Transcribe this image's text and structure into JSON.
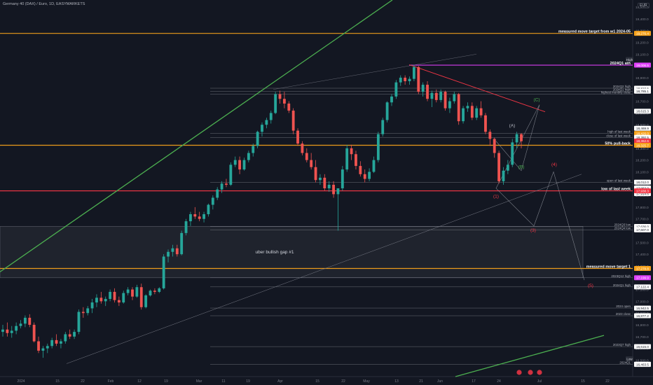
{
  "header": {
    "symbol": "Germany 40 (DAX) / Euro, 1D, EASYMARKETS",
    "currency": "EUR"
  },
  "chart_data": {
    "type": "candlestick",
    "title": "Germany 40 (DAX) / Euro, 1D, EASYMARKETS",
    "ylim": [
      16360,
      19560
    ],
    "y_ticks": [
      16500,
      16600,
      16700,
      16800,
      16900,
      17000,
      17100,
      17200,
      17300,
      17400,
      17500,
      17600,
      17700,
      17800,
      17900,
      18000,
      18100,
      18200,
      18300,
      18400,
      18500,
      18600,
      18700,
      18800,
      18900,
      19000,
      19100,
      19200,
      19300,
      19400,
      19500
    ],
    "x_ticks": [
      "2024",
      "15",
      "22",
      "Feb",
      "12",
      "19",
      "Mar",
      "11",
      "19",
      "Apr",
      "15",
      "22",
      "May",
      "13",
      "21",
      "Jun",
      "17",
      "24",
      "Jul",
      "15",
      "22"
    ],
    "price_labels": [
      {
        "value": 19276.4,
        "text": "19,276.4",
        "color": "#f7a21b"
      },
      {
        "value": 19006.5,
        "text": "19,006.5",
        "color": "#e040fb"
      },
      {
        "value": 18810.5,
        "text": "18,810.5",
        "color": "#ffffff"
      },
      {
        "value": 18785.1,
        "text": "18,785.1",
        "color": "#ffffff"
      },
      {
        "value": 18615.3,
        "text": "18,615.3",
        "color": "#ffffff"
      },
      {
        "value": 18469.9,
        "text": "18,469.9",
        "color": "#ffffff"
      },
      {
        "value": 18426.0,
        "text": "18,426.0",
        "color": "#f7a21b"
      },
      {
        "value": 18392.5,
        "text": "18,392.5",
        "color": "#ffffff"
      },
      {
        "value": 18362.6,
        "text": "18,362.6",
        "color": "#f23645"
      },
      {
        "value": 18325.7,
        "text": "18,325.7",
        "color": "#f7a21b"
      },
      {
        "value": 18012.0,
        "text": "18,012.0",
        "color": "#ffffff"
      },
      {
        "value": 17963.0,
        "text": "17,963.0",
        "color": "#ffffff"
      },
      {
        "value": 17914.6,
        "text": "17,914.6",
        "color": "#ffffff"
      },
      {
        "value": 17938.3,
        "text": "17,938.3",
        "color": "#f23645"
      },
      {
        "value": 17636.0,
        "text": "17,636.0",
        "color": "#ffffff"
      },
      {
        "value": 17607.0,
        "text": "17,607.0",
        "color": "#ffffff"
      },
      {
        "value": 17278.8,
        "text": "17,278.8",
        "color": "#f7a21b"
      },
      {
        "value": 17199.9,
        "text": "17,199.9",
        "color": "#e040fb"
      },
      {
        "value": 17122.4,
        "text": "17,122.4",
        "color": "#ffffff"
      },
      {
        "value": 16942.5,
        "text": "16,942.5",
        "color": "#ffffff"
      },
      {
        "value": 16877.2,
        "text": "16,877.2",
        "color": "#ffffff"
      },
      {
        "value": 16615.0,
        "text": "16,615.0",
        "color": "#ffffff"
      },
      {
        "value": 16465.5,
        "text": "16,465.5",
        "color": "#ffffff"
      },
      {
        "value": 16463.5,
        "text": "16,463.5",
        "color": "#ffffff"
      }
    ],
    "hline_annotations": [
      {
        "value": 19276.4,
        "text": "measured move target from w1 2024-05",
        "color": "#f7a21b"
      },
      {
        "value": 19006.5,
        "text": "2024Q1 ath",
        "color": "#e040fb"
      },
      {
        "value": 18810.5,
        "text": "2024Q2 high",
        "color": "#b2b5be"
      },
      {
        "value": 18785.1,
        "text": "2024Q1 high",
        "color": "#b2b5be"
      },
      {
        "value": 18760.0,
        "text": "highest monthly close",
        "color": "#b2b5be"
      },
      {
        "value": 18426.0,
        "text": "high of last week",
        "color": "#b2b5be"
      },
      {
        "value": 18392.5,
        "text": "close of last week",
        "color": "#b2b5be"
      },
      {
        "value": 18325.7,
        "text": "50% pull-back",
        "color": "#f7a21b"
      },
      {
        "value": 18012.0,
        "text": "open of last week",
        "color": "#b2b5be"
      },
      {
        "value": 17938.3,
        "text": "low of last week",
        "color": "#f23645"
      },
      {
        "value": 17636.0,
        "text": "2024Q3 low",
        "color": "#b2b5be"
      },
      {
        "value": 17607.0,
        "text": "2024Q4 low",
        "color": "#b2b5be"
      },
      {
        "value": 17278.8,
        "text": "measured move target 1",
        "color": "#f7a21b"
      },
      {
        "value": 17199.9,
        "text": "2023Q12 high",
        "color": "#b2b5be"
      },
      {
        "value": 17122.4,
        "text": "2024Q1 high",
        "color": "#b2b5be"
      },
      {
        "value": 16942.5,
        "text": "2024 open",
        "color": "#b2b5be"
      },
      {
        "value": 16877.2,
        "text": "2023 close",
        "color": "#b2b5be"
      },
      {
        "value": 16615.0,
        "text": "2023Q7 high",
        "color": "#b2b5be"
      },
      {
        "value": 16465.5,
        "text": "2024Q1",
        "color": "#b2b5be"
      }
    ],
    "axis_badges": [
      {
        "value": 19006.5,
        "text": "High"
      },
      {
        "value": 16463.5,
        "text": "Low"
      }
    ],
    "wave_labels": [
      {
        "text": "(A)",
        "color": "#b2b5be"
      },
      {
        "text": "(B)",
        "color": "#4caf50"
      },
      {
        "text": "(C)",
        "color": "#4caf50"
      },
      {
        "text": "(1)",
        "color": "#f23645"
      },
      {
        "text": "(3)",
        "color": "#f23645"
      },
      {
        "text": "(4)",
        "color": "#f23645"
      },
      {
        "text": "(5)",
        "color": "#f23645"
      }
    ],
    "gap_zone": {
      "label": "uber bullish gap #1",
      "from": 17199.9,
      "to": 17636.0
    },
    "candles": [
      [
        16740,
        16800,
        16700,
        16760
      ],
      [
        16760,
        16820,
        16700,
        16730
      ],
      [
        16730,
        16790,
        16690,
        16750
      ],
      [
        16750,
        16820,
        16720,
        16790
      ],
      [
        16790,
        16840,
        16770,
        16810
      ],
      [
        16810,
        16880,
        16780,
        16860
      ],
      [
        16860,
        16890,
        16780,
        16800
      ],
      [
        16800,
        16820,
        16650,
        16660
      ],
      [
        16660,
        16700,
        16560,
        16580
      ],
      [
        16580,
        16620,
        16520,
        16600
      ],
      [
        16600,
        16640,
        16560,
        16620
      ],
      [
        16620,
        16690,
        16600,
        16670
      ],
      [
        16670,
        16720,
        16620,
        16640
      ],
      [
        16640,
        16680,
        16600,
        16660
      ],
      [
        16660,
        16740,
        16640,
        16720
      ],
      [
        16720,
        16760,
        16680,
        16700
      ],
      [
        16700,
        16760,
        16680,
        16740
      ],
      [
        16740,
        16930,
        16720,
        16910
      ],
      [
        16910,
        16950,
        16860,
        16900
      ],
      [
        16900,
        16960,
        16880,
        16940
      ],
      [
        16940,
        17020,
        16900,
        16990
      ],
      [
        16990,
        17060,
        16950,
        17030
      ],
      [
        17030,
        17080,
        16980,
        17000
      ],
      [
        17000,
        17040,
        16960,
        17020
      ],
      [
        17020,
        17100,
        17000,
        17080
      ],
      [
        17080,
        17110,
        16990,
        17010
      ],
      [
        17010,
        17040,
        16960,
        16990
      ],
      [
        16990,
        17090,
        16980,
        17070
      ],
      [
        17070,
        17120,
        17050,
        17100
      ],
      [
        17100,
        17120,
        17010,
        17040
      ],
      [
        17040,
        17140,
        17030,
        17120
      ],
      [
        17120,
        17150,
        16930,
        16950
      ],
      [
        16950,
        17060,
        16940,
        17050
      ],
      [
        17050,
        17100,
        17040,
        17090
      ],
      [
        17090,
        17110,
        17060,
        17080
      ],
      [
        17080,
        17120,
        17070,
        17110
      ],
      [
        17110,
        17400,
        17100,
        17380
      ],
      [
        17380,
        17440,
        17330,
        17420
      ],
      [
        17420,
        17480,
        17380,
        17450
      ],
      [
        17450,
        17480,
        17380,
        17400
      ],
      [
        17400,
        17600,
        17390,
        17580
      ],
      [
        17580,
        17700,
        17560,
        17680
      ],
      [
        17680,
        17760,
        17640,
        17740
      ],
      [
        17740,
        17800,
        17700,
        17720
      ],
      [
        17720,
        17760,
        17680,
        17700
      ],
      [
        17700,
        17760,
        17670,
        17740
      ],
      [
        17740,
        17830,
        17720,
        17820
      ],
      [
        17820,
        17900,
        17780,
        17880
      ],
      [
        17880,
        17970,
        17860,
        17950
      ],
      [
        17950,
        18020,
        17920,
        18000
      ],
      [
        18000,
        18040,
        17970,
        17990
      ],
      [
        17990,
        18180,
        17980,
        18160
      ],
      [
        18160,
        18230,
        18140,
        18200
      ],
      [
        18200,
        18230,
        18080,
        18120
      ],
      [
        18120,
        18220,
        18110,
        18200
      ],
      [
        18200,
        18280,
        18180,
        18260
      ],
      [
        18260,
        18340,
        18230,
        18320
      ],
      [
        18320,
        18450,
        18300,
        18440
      ],
      [
        18440,
        18520,
        18400,
        18500
      ],
      [
        18500,
        18560,
        18470,
        18540
      ],
      [
        18540,
        18620,
        18510,
        18600
      ],
      [
        18600,
        18780,
        18590,
        18760
      ],
      [
        18760,
        18790,
        18680,
        18720
      ],
      [
        18720,
        18780,
        18640,
        18680
      ],
      [
        18680,
        18700,
        18600,
        18620
      ],
      [
        18620,
        18640,
        18420,
        18450
      ],
      [
        18450,
        18470,
        18320,
        18340
      ],
      [
        18340,
        18360,
        18240,
        18260
      ],
      [
        18260,
        18300,
        18180,
        18200
      ],
      [
        18200,
        18260,
        18120,
        18140
      ],
      [
        18140,
        18200,
        18010,
        18030
      ],
      [
        18030,
        18080,
        17990,
        18050
      ],
      [
        18050,
        18080,
        17940,
        17960
      ],
      [
        17960,
        18020,
        17930,
        17990
      ],
      [
        17990,
        18020,
        17880,
        17910
      ],
      [
        17910,
        17960,
        17600,
        17960
      ],
      [
        17960,
        18150,
        17940,
        18120
      ],
      [
        18120,
        18330,
        18100,
        18300
      ],
      [
        18300,
        18330,
        18200,
        18250
      ],
      [
        18250,
        18280,
        18120,
        18150
      ],
      [
        18150,
        18190,
        18060,
        18080
      ],
      [
        18080,
        18120,
        18010,
        18040
      ],
      [
        18040,
        18130,
        18020,
        18100
      ],
      [
        18100,
        18230,
        18090,
        18200
      ],
      [
        18200,
        18440,
        18180,
        18420
      ],
      [
        18420,
        18560,
        18400,
        18540
      ],
      [
        18540,
        18700,
        18520,
        18690
      ],
      [
        18690,
        18760,
        18660,
        18740
      ],
      [
        18740,
        18880,
        18720,
        18860
      ],
      [
        18860,
        18920,
        18830,
        18900
      ],
      [
        18900,
        18920,
        18840,
        18870
      ],
      [
        18870,
        18910,
        18840,
        18890
      ],
      [
        18890,
        19006,
        18870,
        18990
      ],
      [
        18990,
        19000,
        18760,
        18780
      ],
      [
        18780,
        18860,
        18740,
        18840
      ],
      [
        18840,
        18870,
        18700,
        18720
      ],
      [
        18720,
        18790,
        18650,
        18770
      ],
      [
        18770,
        18800,
        18690,
        18710
      ],
      [
        18710,
        18800,
        18690,
        18780
      ],
      [
        18780,
        18790,
        18620,
        18640
      ],
      [
        18640,
        18730,
        18600,
        18700
      ],
      [
        18700,
        18780,
        18680,
        18760
      ],
      [
        18760,
        18770,
        18500,
        18530
      ],
      [
        18530,
        18660,
        18510,
        18640
      ],
      [
        18640,
        18690,
        18610,
        18660
      ],
      [
        18660,
        18690,
        18540,
        18560
      ],
      [
        18560,
        18660,
        18540,
        18640
      ],
      [
        18640,
        18700,
        18560,
        18580
      ],
      [
        18580,
        18600,
        18420,
        18440
      ],
      [
        18440,
        18460,
        18320,
        18380
      ],
      [
        18380,
        18390,
        18220,
        18260
      ],
      [
        18260,
        18280,
        18000,
        18020
      ],
      [
        18020,
        18140,
        17990,
        18110
      ],
      [
        18110,
        18200,
        18080,
        18160
      ],
      [
        18160,
        18380,
        18140,
        18350
      ],
      [
        18350,
        18440,
        18300,
        18420
      ],
      [
        18420,
        18430,
        18300,
        18360
      ]
    ]
  }
}
